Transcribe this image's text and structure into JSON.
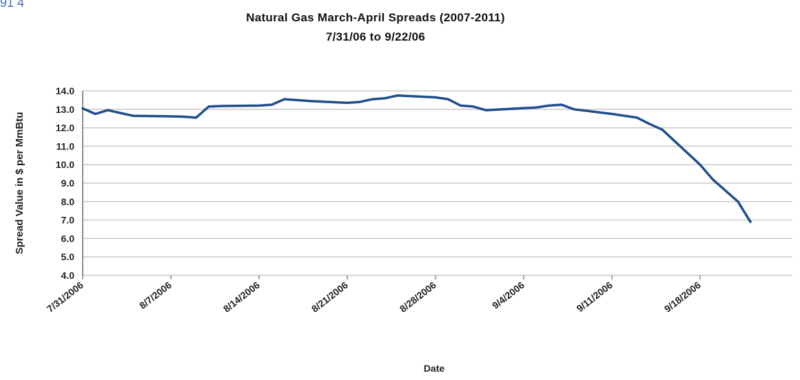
{
  "corner_text": "91 4",
  "chart_data": {
    "type": "line",
    "title": "Natural Gas March-April Spreads (2007-2011)",
    "subtitle": "7/31/06 to 9/22/06",
    "xlabel": "Date",
    "ylabel": "Spread Value in $ per MmBtu",
    "ylim": [
      4.0,
      14.0
    ],
    "yticks": [
      "14.0",
      "13.0",
      "12.0",
      "11.0",
      "10.0",
      "9.0",
      "8.0",
      "7.0",
      "6.0",
      "5.0",
      "4.0"
    ],
    "xticks": [
      "7/31/2006",
      "8/7/2006",
      "8/14/2006",
      "8/21/2006",
      "8/28/2006",
      "9/4/2006",
      "9/11/2006",
      "9/18/2006"
    ],
    "grid": true,
    "line_color": "#1f4e8c",
    "series": [
      {
        "x": [
          "7/31/2006",
          "8/1/2006",
          "8/2/2006",
          "8/3/2006",
          "8/4/2006",
          "8/7/2006",
          "8/8/2006",
          "8/9/2006",
          "8/10/2006",
          "8/11/2006",
          "8/14/2006",
          "8/15/2006",
          "8/16/2006",
          "8/17/2006",
          "8/18/2006",
          "8/21/2006",
          "8/22/2006",
          "8/23/2006",
          "8/24/2006",
          "8/25/2006",
          "8/28/2006",
          "8/29/2006",
          "8/30/2006",
          "8/31/2006",
          "9/1/2006",
          "9/5/2006",
          "9/6/2006",
          "9/7/2006",
          "9/8/2006",
          "9/11/2006",
          "9/12/2006",
          "9/13/2006",
          "9/14/2006",
          "9/15/2006",
          "9/18/2006",
          "9/19/2006",
          "9/20/2006",
          "9/21/2006",
          "9/22/2006"
        ],
        "values": [
          13.05,
          12.75,
          12.95,
          12.8,
          12.65,
          12.62,
          12.6,
          12.55,
          13.15,
          13.18,
          13.2,
          13.25,
          13.55,
          13.5,
          13.45,
          13.35,
          13.4,
          13.55,
          13.6,
          13.75,
          13.65,
          13.55,
          13.2,
          13.15,
          12.95,
          13.1,
          13.2,
          13.25,
          13.0,
          12.75,
          12.65,
          12.55,
          12.2,
          11.9,
          10.0,
          9.2,
          8.6,
          8.0,
          6.9
        ]
      }
    ]
  }
}
